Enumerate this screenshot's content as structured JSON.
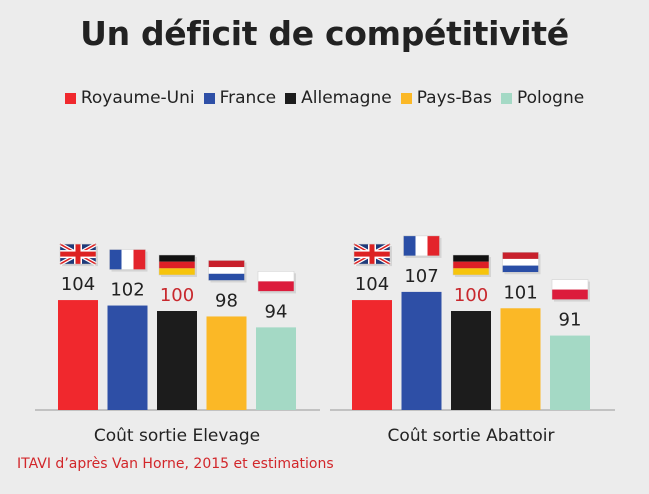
{
  "title": "Un déficit de compétitivité",
  "source": "ITAVI d’après Van Horne, 2015 et estimations",
  "chart_data": {
    "type": "bar",
    "title": "Un déficit de compétitivité",
    "categories": [
      "Coût sortie Elevage",
      "Coût sortie Abattoir"
    ],
    "series": [
      {
        "name": "Royaume-Uni",
        "color": "#f0282d",
        "flag": "uk-flag-icon",
        "values": [
          104,
          104
        ]
      },
      {
        "name": "France",
        "color": "#2e4fa6",
        "flag": "france-flag-icon",
        "values": [
          102,
          107
        ]
      },
      {
        "name": "Allemagne",
        "color": "#1c1c1c",
        "flag": "germany-flag-icon",
        "values": [
          100,
          100
        ]
      },
      {
        "name": "Pays-Bas",
        "color": "#fbb826",
        "flag": "netherlands-flag-icon",
        "values": [
          98,
          101
        ]
      },
      {
        "name": "Pologne",
        "color": "#a4d9c5",
        "flag": "poland-flag-icon",
        "values": [
          94,
          91
        ]
      }
    ],
    "highlight_value": 100,
    "highlight_color": "#c8282d",
    "label_color": "#222222",
    "legend_position": "top",
    "grid": false
  }
}
